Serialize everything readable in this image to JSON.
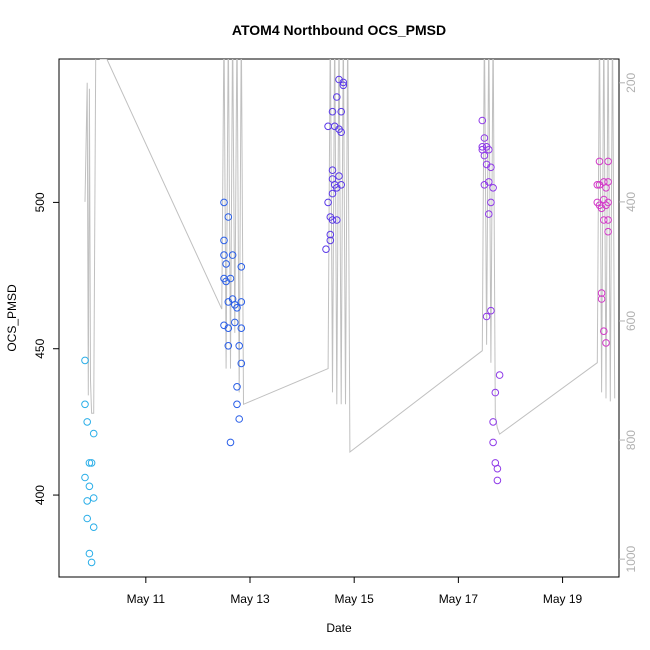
{
  "chart_data": {
    "type": "scatter",
    "title": "ATOM4 Northbound OCS_PMSD",
    "xlabel": "Date",
    "ylabel": "OCS_PMSD",
    "x_axis": {
      "type": "date",
      "range": [
        "2023-05-09T08:00",
        "2023-05-20T02:00"
      ],
      "ticks": [
        {
          "value": "2023-05-11",
          "label": "May 11"
        },
        {
          "value": "2023-05-13",
          "label": "May 13"
        },
        {
          "value": "2023-05-15",
          "label": "May 15"
        },
        {
          "value": "2023-05-17",
          "label": "May 17"
        },
        {
          "value": "2023-05-19",
          "label": "May 19"
        }
      ]
    },
    "y_axis": {
      "range": [
        372,
        549
      ],
      "ticks": [
        400,
        450,
        500
      ]
    },
    "y2_axis": {
      "range": [
        1030,
        160
      ],
      "reversed": true,
      "ticks": [
        200,
        400,
        600,
        800,
        1000
      ],
      "color": "#b0b0b0"
    },
    "grid": false,
    "legend": "none",
    "line_series": {
      "color": "#c0c0c0",
      "axis": "y2",
      "points": [
        [
          "2023-05-09T20:00",
          400
        ],
        [
          "2023-05-09T21:00",
          200
        ],
        [
          "2023-05-09T21:30",
          725
        ],
        [
          "2023-05-09T22:00",
          210
        ],
        [
          "2023-05-09T22:30",
          700
        ],
        [
          "2023-05-09T23:00",
          755
        ],
        [
          "2023-05-10T00:00",
          755
        ],
        [
          "2023-05-10T01:00",
          100
        ],
        [
          "2023-05-10T03:00",
          160
        ],
        [
          "2023-05-10T06:00",
          160
        ],
        [
          "2023-05-12T11:00",
          580
        ],
        [
          "2023-05-12T12:00",
          100
        ],
        [
          "2023-05-12T13:00",
          680
        ],
        [
          "2023-05-12T14:00",
          100
        ],
        [
          "2023-05-12T15:00",
          680
        ],
        [
          "2023-05-12T16:00",
          100
        ],
        [
          "2023-05-12T17:00",
          620
        ],
        [
          "2023-05-12T18:00",
          100
        ],
        [
          "2023-05-12T19:00",
          720
        ],
        [
          "2023-05-12T20:00",
          100
        ],
        [
          "2023-05-12T21:00",
          740
        ],
        [
          "2023-05-14T12:00",
          680
        ],
        [
          "2023-05-14T13:00",
          100
        ],
        [
          "2023-05-14T14:00",
          720
        ],
        [
          "2023-05-14T15:00",
          100
        ],
        [
          "2023-05-14T16:00",
          740
        ],
        [
          "2023-05-14T17:00",
          100
        ],
        [
          "2023-05-14T18:00",
          740
        ],
        [
          "2023-05-14T19:00",
          100
        ],
        [
          "2023-05-14T20:00",
          740
        ],
        [
          "2023-05-14T21:00",
          100
        ],
        [
          "2023-05-14T22:00",
          820
        ],
        [
          "2023-05-17T11:00",
          650
        ],
        [
          "2023-05-17T12:00",
          100
        ],
        [
          "2023-05-17T13:00",
          640
        ],
        [
          "2023-05-17T14:00",
          100
        ],
        [
          "2023-05-17T15:00",
          670
        ],
        [
          "2023-05-17T16:00",
          100
        ],
        [
          "2023-05-17T17:00",
          760
        ],
        [
          "2023-05-17T18:00",
          780
        ],
        [
          "2023-05-17T19:00",
          790
        ],
        [
          "2023-05-19T16:00",
          670
        ],
        [
          "2023-05-19T17:00",
          100
        ],
        [
          "2023-05-19T18:00",
          720
        ],
        [
          "2023-05-19T19:00",
          100
        ],
        [
          "2023-05-19T20:00",
          730
        ],
        [
          "2023-05-19T21:00",
          100
        ],
        [
          "2023-05-19T22:00",
          735
        ],
        [
          "2023-05-19T23:00",
          100
        ],
        [
          "2023-05-20T00:00",
          730
        ]
      ]
    },
    "series": [
      {
        "color": "#2aaee8",
        "points": [
          [
            "2023-05-09T20:00",
            446
          ],
          [
            "2023-05-09T20:00",
            431
          ],
          [
            "2023-05-09T20:00",
            406
          ],
          [
            "2023-05-09T21:00",
            425
          ],
          [
            "2023-05-09T21:00",
            398
          ],
          [
            "2023-05-09T21:00",
            392
          ],
          [
            "2023-05-09T22:00",
            411
          ],
          [
            "2023-05-09T22:00",
            403
          ],
          [
            "2023-05-09T22:00",
            380
          ],
          [
            "2023-05-09T23:00",
            411
          ],
          [
            "2023-05-09T23:00",
            377
          ],
          [
            "2023-05-10T00:00",
            421
          ],
          [
            "2023-05-10T00:00",
            399
          ],
          [
            "2023-05-10T00:00",
            389
          ]
        ]
      },
      {
        "color": "#2a5fe8",
        "points": [
          [
            "2023-05-12T12:00",
            500
          ],
          [
            "2023-05-12T12:00",
            487
          ],
          [
            "2023-05-12T12:00",
            482
          ],
          [
            "2023-05-12T12:00",
            474
          ],
          [
            "2023-05-12T12:00",
            458
          ],
          [
            "2023-05-12T13:00",
            479
          ],
          [
            "2023-05-12T13:00",
            473
          ],
          [
            "2023-05-12T14:00",
            495
          ],
          [
            "2023-05-12T14:00",
            466
          ],
          [
            "2023-05-12T14:00",
            457
          ],
          [
            "2023-05-12T14:00",
            451
          ],
          [
            "2023-05-12T15:00",
            418
          ],
          [
            "2023-05-12T15:00",
            474
          ],
          [
            "2023-05-12T16:00",
            482
          ],
          [
            "2023-05-12T16:00",
            467
          ],
          [
            "2023-05-12T17:00",
            465
          ],
          [
            "2023-05-12T17:00",
            459
          ],
          [
            "2023-05-12T18:00",
            464
          ],
          [
            "2023-05-12T18:00",
            437
          ],
          [
            "2023-05-12T18:00",
            431
          ],
          [
            "2023-05-12T19:00",
            451
          ],
          [
            "2023-05-12T19:00",
            426
          ],
          [
            "2023-05-12T20:00",
            478
          ],
          [
            "2023-05-12T20:00",
            466
          ],
          [
            "2023-05-12T20:00",
            457
          ],
          [
            "2023-05-12T20:00",
            445
          ]
        ]
      },
      {
        "color": "#5b3ae8",
        "points": [
          [
            "2023-05-14T11:00",
            484
          ],
          [
            "2023-05-14T12:00",
            526
          ],
          [
            "2023-05-14T12:00",
            500
          ],
          [
            "2023-05-14T13:00",
            495
          ],
          [
            "2023-05-14T13:00",
            489
          ],
          [
            "2023-05-14T13:00",
            487
          ],
          [
            "2023-05-14T14:00",
            531
          ],
          [
            "2023-05-14T14:00",
            511
          ],
          [
            "2023-05-14T14:00",
            508
          ],
          [
            "2023-05-14T14:00",
            503
          ],
          [
            "2023-05-14T14:00",
            494
          ],
          [
            "2023-05-14T15:00",
            526
          ],
          [
            "2023-05-14T15:00",
            506
          ],
          [
            "2023-05-14T16:00",
            536
          ],
          [
            "2023-05-14T16:00",
            505
          ],
          [
            "2023-05-14T16:00",
            494
          ],
          [
            "2023-05-14T17:00",
            542
          ],
          [
            "2023-05-14T17:00",
            525
          ],
          [
            "2023-05-14T17:00",
            509
          ],
          [
            "2023-05-14T18:00",
            531
          ],
          [
            "2023-05-14T18:00",
            524
          ],
          [
            "2023-05-14T18:00",
            506
          ],
          [
            "2023-05-14T19:00",
            541
          ],
          [
            "2023-05-14T19:00",
            540
          ]
        ]
      },
      {
        "color": "#8f3ae8",
        "points": [
          [
            "2023-05-17T11:00",
            528
          ],
          [
            "2023-05-17T11:00",
            519
          ],
          [
            "2023-05-17T11:00",
            518
          ],
          [
            "2023-05-17T12:00",
            522
          ],
          [
            "2023-05-17T12:00",
            516
          ],
          [
            "2023-05-17T12:00",
            506
          ],
          [
            "2023-05-17T13:00",
            519
          ],
          [
            "2023-05-17T13:00",
            513
          ],
          [
            "2023-05-17T13:00",
            461
          ],
          [
            "2023-05-17T14:00",
            518
          ],
          [
            "2023-05-17T14:00",
            507
          ],
          [
            "2023-05-17T14:00",
            496
          ],
          [
            "2023-05-17T15:00",
            512
          ],
          [
            "2023-05-17T15:00",
            500
          ],
          [
            "2023-05-17T15:00",
            463
          ],
          [
            "2023-05-17T16:00",
            505
          ],
          [
            "2023-05-17T16:00",
            425
          ],
          [
            "2023-05-17T16:00",
            418
          ],
          [
            "2023-05-17T17:00",
            435
          ],
          [
            "2023-05-17T17:00",
            411
          ],
          [
            "2023-05-17T18:00",
            409
          ],
          [
            "2023-05-17T18:00",
            405
          ],
          [
            "2023-05-17T19:00",
            441
          ]
        ]
      },
      {
        "color": "#d23ac8",
        "points": [
          [
            "2023-05-19T16:00",
            506
          ],
          [
            "2023-05-19T16:00",
            500
          ],
          [
            "2023-05-19T17:00",
            514
          ],
          [
            "2023-05-19T17:00",
            506
          ],
          [
            "2023-05-19T17:00",
            499
          ],
          [
            "2023-05-19T18:00",
            469
          ],
          [
            "2023-05-19T18:00",
            467
          ],
          [
            "2023-05-19T18:00",
            498
          ],
          [
            "2023-05-19T19:00",
            507
          ],
          [
            "2023-05-19T19:00",
            501
          ],
          [
            "2023-05-19T19:00",
            494
          ],
          [
            "2023-05-19T19:00",
            456
          ],
          [
            "2023-05-19T20:00",
            505
          ],
          [
            "2023-05-19T20:00",
            499
          ],
          [
            "2023-05-19T20:00",
            452
          ],
          [
            "2023-05-19T21:00",
            514
          ],
          [
            "2023-05-19T21:00",
            507
          ],
          [
            "2023-05-19T21:00",
            500
          ],
          [
            "2023-05-19T21:00",
            494
          ],
          [
            "2023-05-19T21:00",
            490
          ]
        ]
      }
    ]
  }
}
